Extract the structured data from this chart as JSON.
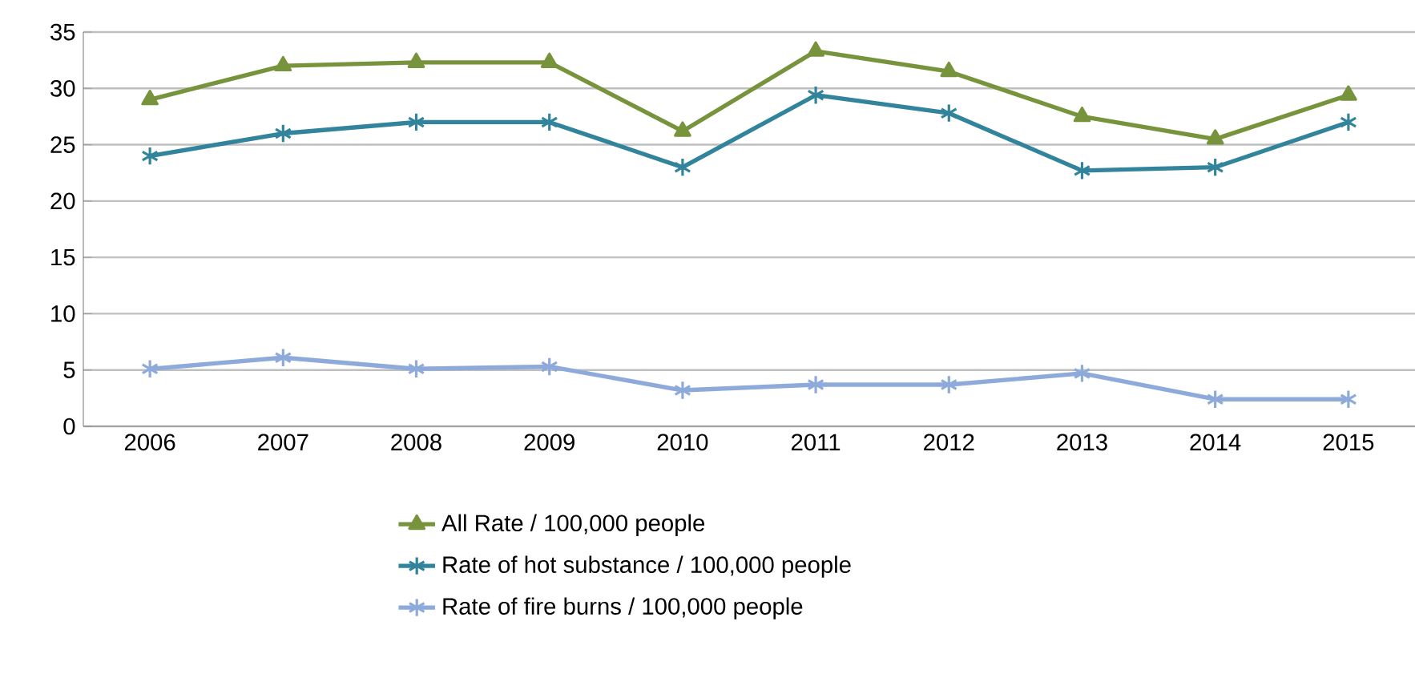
{
  "chart_data": {
    "type": "line",
    "categories": [
      "2006",
      "2007",
      "2008",
      "2009",
      "2010",
      "2011",
      "2012",
      "2013",
      "2014",
      "2015"
    ],
    "series": [
      {
        "name": "All Rate / 100,000 people",
        "color": "#77933c",
        "marker": "triangle",
        "values": [
          29,
          32,
          32.3,
          32.3,
          26.2,
          33.3,
          31.5,
          27.5,
          25.5,
          29.4
        ]
      },
      {
        "name": "Rate of hot substance / 100,000 people",
        "color": "#31849b",
        "marker": "cross",
        "values": [
          24,
          26,
          27,
          27,
          23,
          29.4,
          27.8,
          22.7,
          23,
          27
        ]
      },
      {
        "name": "Rate of fire burns / 100,000 people",
        "color": "#8eaadb",
        "marker": "cross",
        "values": [
          5.1,
          6.1,
          5.1,
          5.3,
          3.2,
          3.7,
          3.7,
          4.7,
          2.4,
          2.4
        ]
      }
    ],
    "ylim": [
      0,
      35
    ],
    "yticks": [
      0,
      5,
      10,
      15,
      20,
      25,
      30,
      35
    ],
    "grid": "y",
    "legend": "bottom",
    "line_style": "solid"
  }
}
